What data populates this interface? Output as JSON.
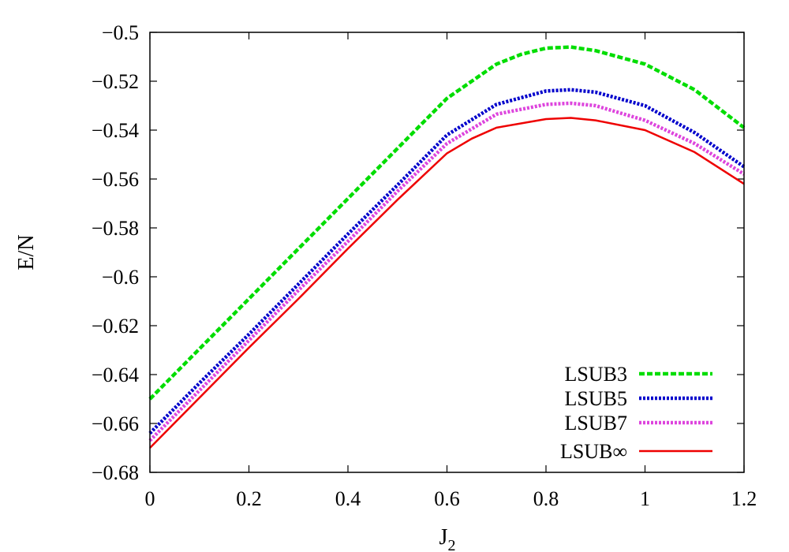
{
  "chart_data": {
    "type": "line",
    "xlabel": "J",
    "xlabel_sub": "2",
    "ylabel": "E/N",
    "xlim": [
      0,
      1.2
    ],
    "ylim": [
      -0.68,
      -0.5
    ],
    "x_ticks": [
      0,
      0.2,
      0.4,
      0.6,
      0.8,
      1,
      1.2
    ],
    "x_tick_labels": [
      "0",
      "0.2",
      "0.4",
      "0.6",
      "0.8",
      "1",
      "1.2"
    ],
    "y_ticks": [
      -0.5,
      -0.52,
      -0.54,
      -0.56,
      -0.58,
      -0.6,
      -0.62,
      -0.64,
      -0.66,
      -0.68
    ],
    "y_tick_labels": [
      "−0.5",
      "−0.52",
      "−0.54",
      "−0.56",
      "−0.58",
      "−0.6",
      "−0.62",
      "−0.64",
      "−0.66",
      "−0.68"
    ],
    "grid": false,
    "legend_position": "bottom-right",
    "series": [
      {
        "name": "LSUB3",
        "color": "#00dd00",
        "style": "dashed",
        "points": [
          [
            0,
            -0.65
          ],
          [
            0.1,
            -0.6295
          ],
          [
            0.2,
            -0.609
          ],
          [
            0.3,
            -0.5885
          ],
          [
            0.4,
            -0.568
          ],
          [
            0.5,
            -0.5475
          ],
          [
            0.6,
            -0.527
          ],
          [
            0.7,
            -0.513
          ],
          [
            0.75,
            -0.509
          ],
          [
            0.8,
            -0.5065
          ],
          [
            0.85,
            -0.506
          ],
          [
            0.9,
            -0.5075
          ],
          [
            1.0,
            -0.513
          ],
          [
            1.1,
            -0.5235
          ],
          [
            1.2,
            -0.539
          ]
        ]
      },
      {
        "name": "LSUB5",
        "color": "#0000cc",
        "style": "dotted",
        "points": [
          [
            0,
            -0.664
          ],
          [
            0.1,
            -0.6435
          ],
          [
            0.2,
            -0.6235
          ],
          [
            0.3,
            -0.603
          ],
          [
            0.4,
            -0.5825
          ],
          [
            0.5,
            -0.5625
          ],
          [
            0.6,
            -0.542
          ],
          [
            0.7,
            -0.5295
          ],
          [
            0.8,
            -0.524
          ],
          [
            0.85,
            -0.5235
          ],
          [
            0.9,
            -0.5245
          ],
          [
            1.0,
            -0.53
          ],
          [
            1.1,
            -0.541
          ],
          [
            1.2,
            -0.555
          ]
        ]
      },
      {
        "name": "LSUB7",
        "color": "#dd44dd",
        "style": "dotted",
        "points": [
          [
            0,
            -0.667
          ],
          [
            0.1,
            -0.6465
          ],
          [
            0.2,
            -0.626
          ],
          [
            0.3,
            -0.6055
          ],
          [
            0.4,
            -0.5855
          ],
          [
            0.5,
            -0.565
          ],
          [
            0.6,
            -0.5455
          ],
          [
            0.7,
            -0.5335
          ],
          [
            0.8,
            -0.5295
          ],
          [
            0.85,
            -0.529
          ],
          [
            0.9,
            -0.53
          ],
          [
            1.0,
            -0.536
          ],
          [
            1.1,
            -0.5455
          ],
          [
            1.2,
            -0.558
          ]
        ]
      },
      {
        "name": "LSUB∞",
        "color": "#ee0000",
        "style": "solid",
        "points": [
          [
            0,
            -0.67
          ],
          [
            0.1,
            -0.6495
          ],
          [
            0.2,
            -0.629
          ],
          [
            0.3,
            -0.609
          ],
          [
            0.4,
            -0.5885
          ],
          [
            0.5,
            -0.5685
          ],
          [
            0.6,
            -0.5495
          ],
          [
            0.65,
            -0.5435
          ],
          [
            0.7,
            -0.539
          ],
          [
            0.8,
            -0.5355
          ],
          [
            0.85,
            -0.535
          ],
          [
            0.9,
            -0.536
          ],
          [
            1.0,
            -0.54
          ],
          [
            1.1,
            -0.549
          ],
          [
            1.2,
            -0.562
          ]
        ]
      }
    ]
  }
}
